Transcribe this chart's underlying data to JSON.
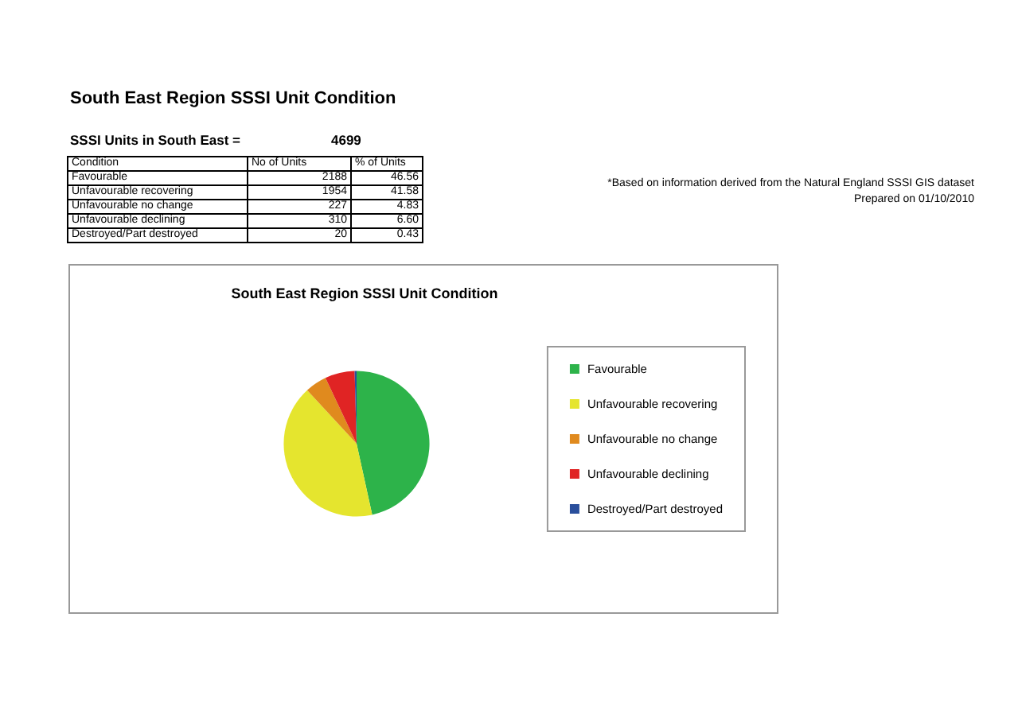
{
  "chart_data": {
    "type": "pie",
    "title": "South East Region SSSI Unit Condition",
    "categories": [
      "Favourable",
      "Unfavourable recovering",
      "Unfavourable no change",
      "Unfavourable declining",
      "Destroyed/Part destroyed"
    ],
    "values": [
      46.56,
      41.58,
      4.83,
      6.6,
      0.43
    ],
    "colors": [
      "#2db34a",
      "#e5e52e",
      "#e08a1e",
      "#e02424",
      "#2a4f9c"
    ],
    "legend": "right",
    "annotations": [
      "SSSI Units in South East =",
      "4699",
      "Condition",
      "No of Units",
      "% of Units",
      "*Based on information derived from the Natural England SSSI GIS dataset",
      "Prepared on 01/10/2010",
      "2188",
      "1954",
      "227",
      "310",
      "20",
      "46.56",
      "41.58",
      "4.83",
      "6.60",
      "0.43"
    ]
  }
}
